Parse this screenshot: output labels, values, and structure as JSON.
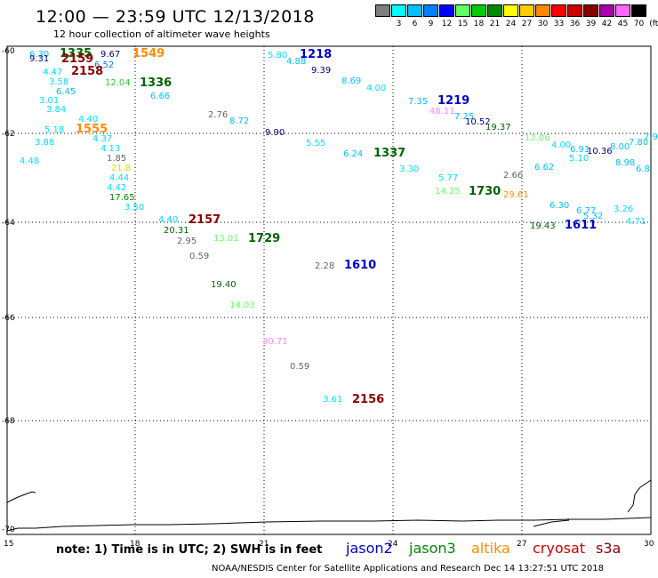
{
  "header": {
    "title": "12:00 — 23:59 UTC 12/13/2018",
    "subtitle": "12 hour collection of altimeter wave heights"
  },
  "legend": {
    "unit": "(ft)",
    "items": [
      {
        "label": "",
        "color": "#7f7f7f"
      },
      {
        "label": "3",
        "color": "#00ffff"
      },
      {
        "label": "6",
        "color": "#00bfff"
      },
      {
        "label": "9",
        "color": "#0080ff"
      },
      {
        "label": "12",
        "color": "#0000ff"
      },
      {
        "label": "15",
        "color": "#60ff60"
      },
      {
        "label": "18",
        "color": "#00cc00"
      },
      {
        "label": "21",
        "color": "#008800"
      },
      {
        "label": "24",
        "color": "#ffff00"
      },
      {
        "label": "27",
        "color": "#ffcc00"
      },
      {
        "label": "30",
        "color": "#ff8800"
      },
      {
        "label": "33",
        "color": "#ff0000"
      },
      {
        "label": "36",
        "color": "#cc0000"
      },
      {
        "label": "39",
        "color": "#880000"
      },
      {
        "label": "42",
        "color": "#aa00aa"
      },
      {
        "label": "45",
        "color": "#ff66ff"
      },
      {
        "label": "70",
        "color": "#000000"
      }
    ]
  },
  "axes": {
    "x_ticks": [
      "15",
      "18",
      "21",
      "24",
      "27",
      "30"
    ],
    "y_ticks": [
      "-60",
      "-62",
      "-64",
      "-66",
      "-68",
      "-70"
    ]
  },
  "observations": [
    {
      "text": "6.30",
      "color": "#00bfff"
    },
    {
      "text": "9.31",
      "color": "#000080"
    },
    {
      "text": "1335",
      "color": "#006400"
    },
    {
      "text": "2159",
      "color": "#8b0000"
    },
    {
      "text": "9.67",
      "color": "#000080"
    },
    {
      "text": "1549",
      "color": "#ff8c00"
    },
    {
      "text": "1218",
      "color": "#0000cc"
    },
    {
      "text": "5.80",
      "color": "#00e0ff"
    },
    {
      "text": "4.88",
      "color": "#00bfff"
    },
    {
      "text": "9.39",
      "color": "#000080"
    },
    {
      "text": "4.47",
      "color": "#00e0ff"
    },
    {
      "text": "6.52",
      "color": "#0080ff"
    },
    {
      "text": "2158",
      "color": "#8b0000"
    },
    {
      "text": "3.58",
      "color": "#00e0ff"
    },
    {
      "text": "12.04",
      "color": "#32cd32"
    },
    {
      "text": "1336",
      "color": "#006400"
    },
    {
      "text": "8.69",
      "color": "#00bfff"
    },
    {
      "text": "6.45",
      "color": "#00bfff"
    },
    {
      "text": "6.66",
      "color": "#00bfff"
    },
    {
      "text": "4.00",
      "color": "#00e0ff"
    },
    {
      "text": "3.01",
      "color": "#00e0ff"
    },
    {
      "text": "7.35",
      "color": "#00bfff"
    },
    {
      "text": "1219",
      "color": "#0000cc"
    },
    {
      "text": "3.84",
      "color": "#00e0ff"
    },
    {
      "text": "2.76",
      "color": "#666666"
    },
    {
      "text": "8.72",
      "color": "#00bfff"
    },
    {
      "text": "48.11",
      "color": "#ff88ff"
    },
    {
      "text": "7.25",
      "color": "#00bfff"
    },
    {
      "text": "10.52",
      "color": "#000080"
    },
    {
      "text": "4.40",
      "color": "#00e0ff"
    },
    {
      "text": "19.37",
      "color": "#006400"
    },
    {
      "text": "5.18",
      "color": "#00e0ff"
    },
    {
      "text": "1555",
      "color": "#ff8c00"
    },
    {
      "text": "9.90",
      "color": "#000080"
    },
    {
      "text": "3.88",
      "color": "#00e0ff"
    },
    {
      "text": "4.37",
      "color": "#00e0ff"
    },
    {
      "text": "5.55",
      "color": "#00e0ff"
    },
    {
      "text": "12.06",
      "color": "#66ff66"
    },
    {
      "text": "4.00",
      "color": "#00e0ff"
    },
    {
      "text": "6.91",
      "color": "#00bfff"
    },
    {
      "text": "10.36",
      "color": "#000080"
    },
    {
      "text": "8.00",
      "color": "#00bfff"
    },
    {
      "text": "7.80",
      "color": "#00bfff"
    },
    {
      "text": "7.9",
      "color": "#00bfff"
    },
    {
      "text": "4.13",
      "color": "#00e0ff"
    },
    {
      "text": "6.24",
      "color": "#00bfff"
    },
    {
      "text": "1337",
      "color": "#006400"
    },
    {
      "text": "5.10",
      "color": "#00e0ff"
    },
    {
      "text": "8.98",
      "color": "#00bfff"
    },
    {
      "text": "4.48",
      "color": "#00e0ff"
    },
    {
      "text": "1.85",
      "color": "#666666"
    },
    {
      "text": "21.8",
      "color": "#dddd00"
    },
    {
      "text": "3.30",
      "color": "#00e0ff"
    },
    {
      "text": "6.62",
      "color": "#00bfff"
    },
    {
      "text": "6.8",
      "color": "#00bfff"
    },
    {
      "text": "4.44",
      "color": "#00e0ff"
    },
    {
      "text": "5.77",
      "color": "#00e0ff"
    },
    {
      "text": "2.66",
      "color": "#666666"
    },
    {
      "text": "4.42",
      "color": "#00e0ff"
    },
    {
      "text": "14.25",
      "color": "#66ff66"
    },
    {
      "text": "1730",
      "color": "#006400"
    },
    {
      "text": "29.61",
      "color": "#ff8c00"
    },
    {
      "text": "17.65",
      "color": "#008800"
    },
    {
      "text": "3.50",
      "color": "#00e0ff"
    },
    {
      "text": "6.30",
      "color": "#00bfff"
    },
    {
      "text": "6.77",
      "color": "#00bfff"
    },
    {
      "text": "3.26",
      "color": "#00e0ff"
    },
    {
      "text": "4.40",
      "color": "#00e0ff"
    },
    {
      "text": "2157",
      "color": "#8b0000"
    },
    {
      "text": "5.32",
      "color": "#00bfff"
    },
    {
      "text": "4.71",
      "color": "#00e0ff"
    },
    {
      "text": "20.31",
      "color": "#006400"
    },
    {
      "text": "19.43",
      "color": "#006400"
    },
    {
      "text": "1611",
      "color": "#0000cc"
    },
    {
      "text": "2.95",
      "color": "#666666"
    },
    {
      "text": "13.01",
      "color": "#66ff66"
    },
    {
      "text": "1729",
      "color": "#006400"
    },
    {
      "text": "0.59",
      "color": "#666666"
    },
    {
      "text": "2.28",
      "color": "#666666"
    },
    {
      "text": "1610",
      "color": "#0000cc"
    },
    {
      "text": "19.40",
      "color": "#006400"
    },
    {
      "text": "14.03",
      "color": "#66ff66"
    },
    {
      "text": "30.71",
      "color": "#ff88ff"
    },
    {
      "text": "0.59",
      "color": "#666666"
    },
    {
      "text": "3.61",
      "color": "#00e0ff"
    },
    {
      "text": "2156",
      "color": "#8b0000"
    }
  ],
  "footer": {
    "note": "note: 1) Time is in UTC; 2) SWH is in feet",
    "satellites": [
      {
        "name": "jason2",
        "color": "#0000cc"
      },
      {
        "name": "jason3",
        "color": "#008800"
      },
      {
        "name": "altika",
        "color": "#ff8c00"
      },
      {
        "name": "cryosat",
        "color": "#cc0000"
      },
      {
        "name": "s3a",
        "color": "#8b0000"
      }
    ],
    "credit": "NOAA/NESDIS Center for Satellite Applications and Research    Dec 14 13:27:51 UTC 2018"
  }
}
